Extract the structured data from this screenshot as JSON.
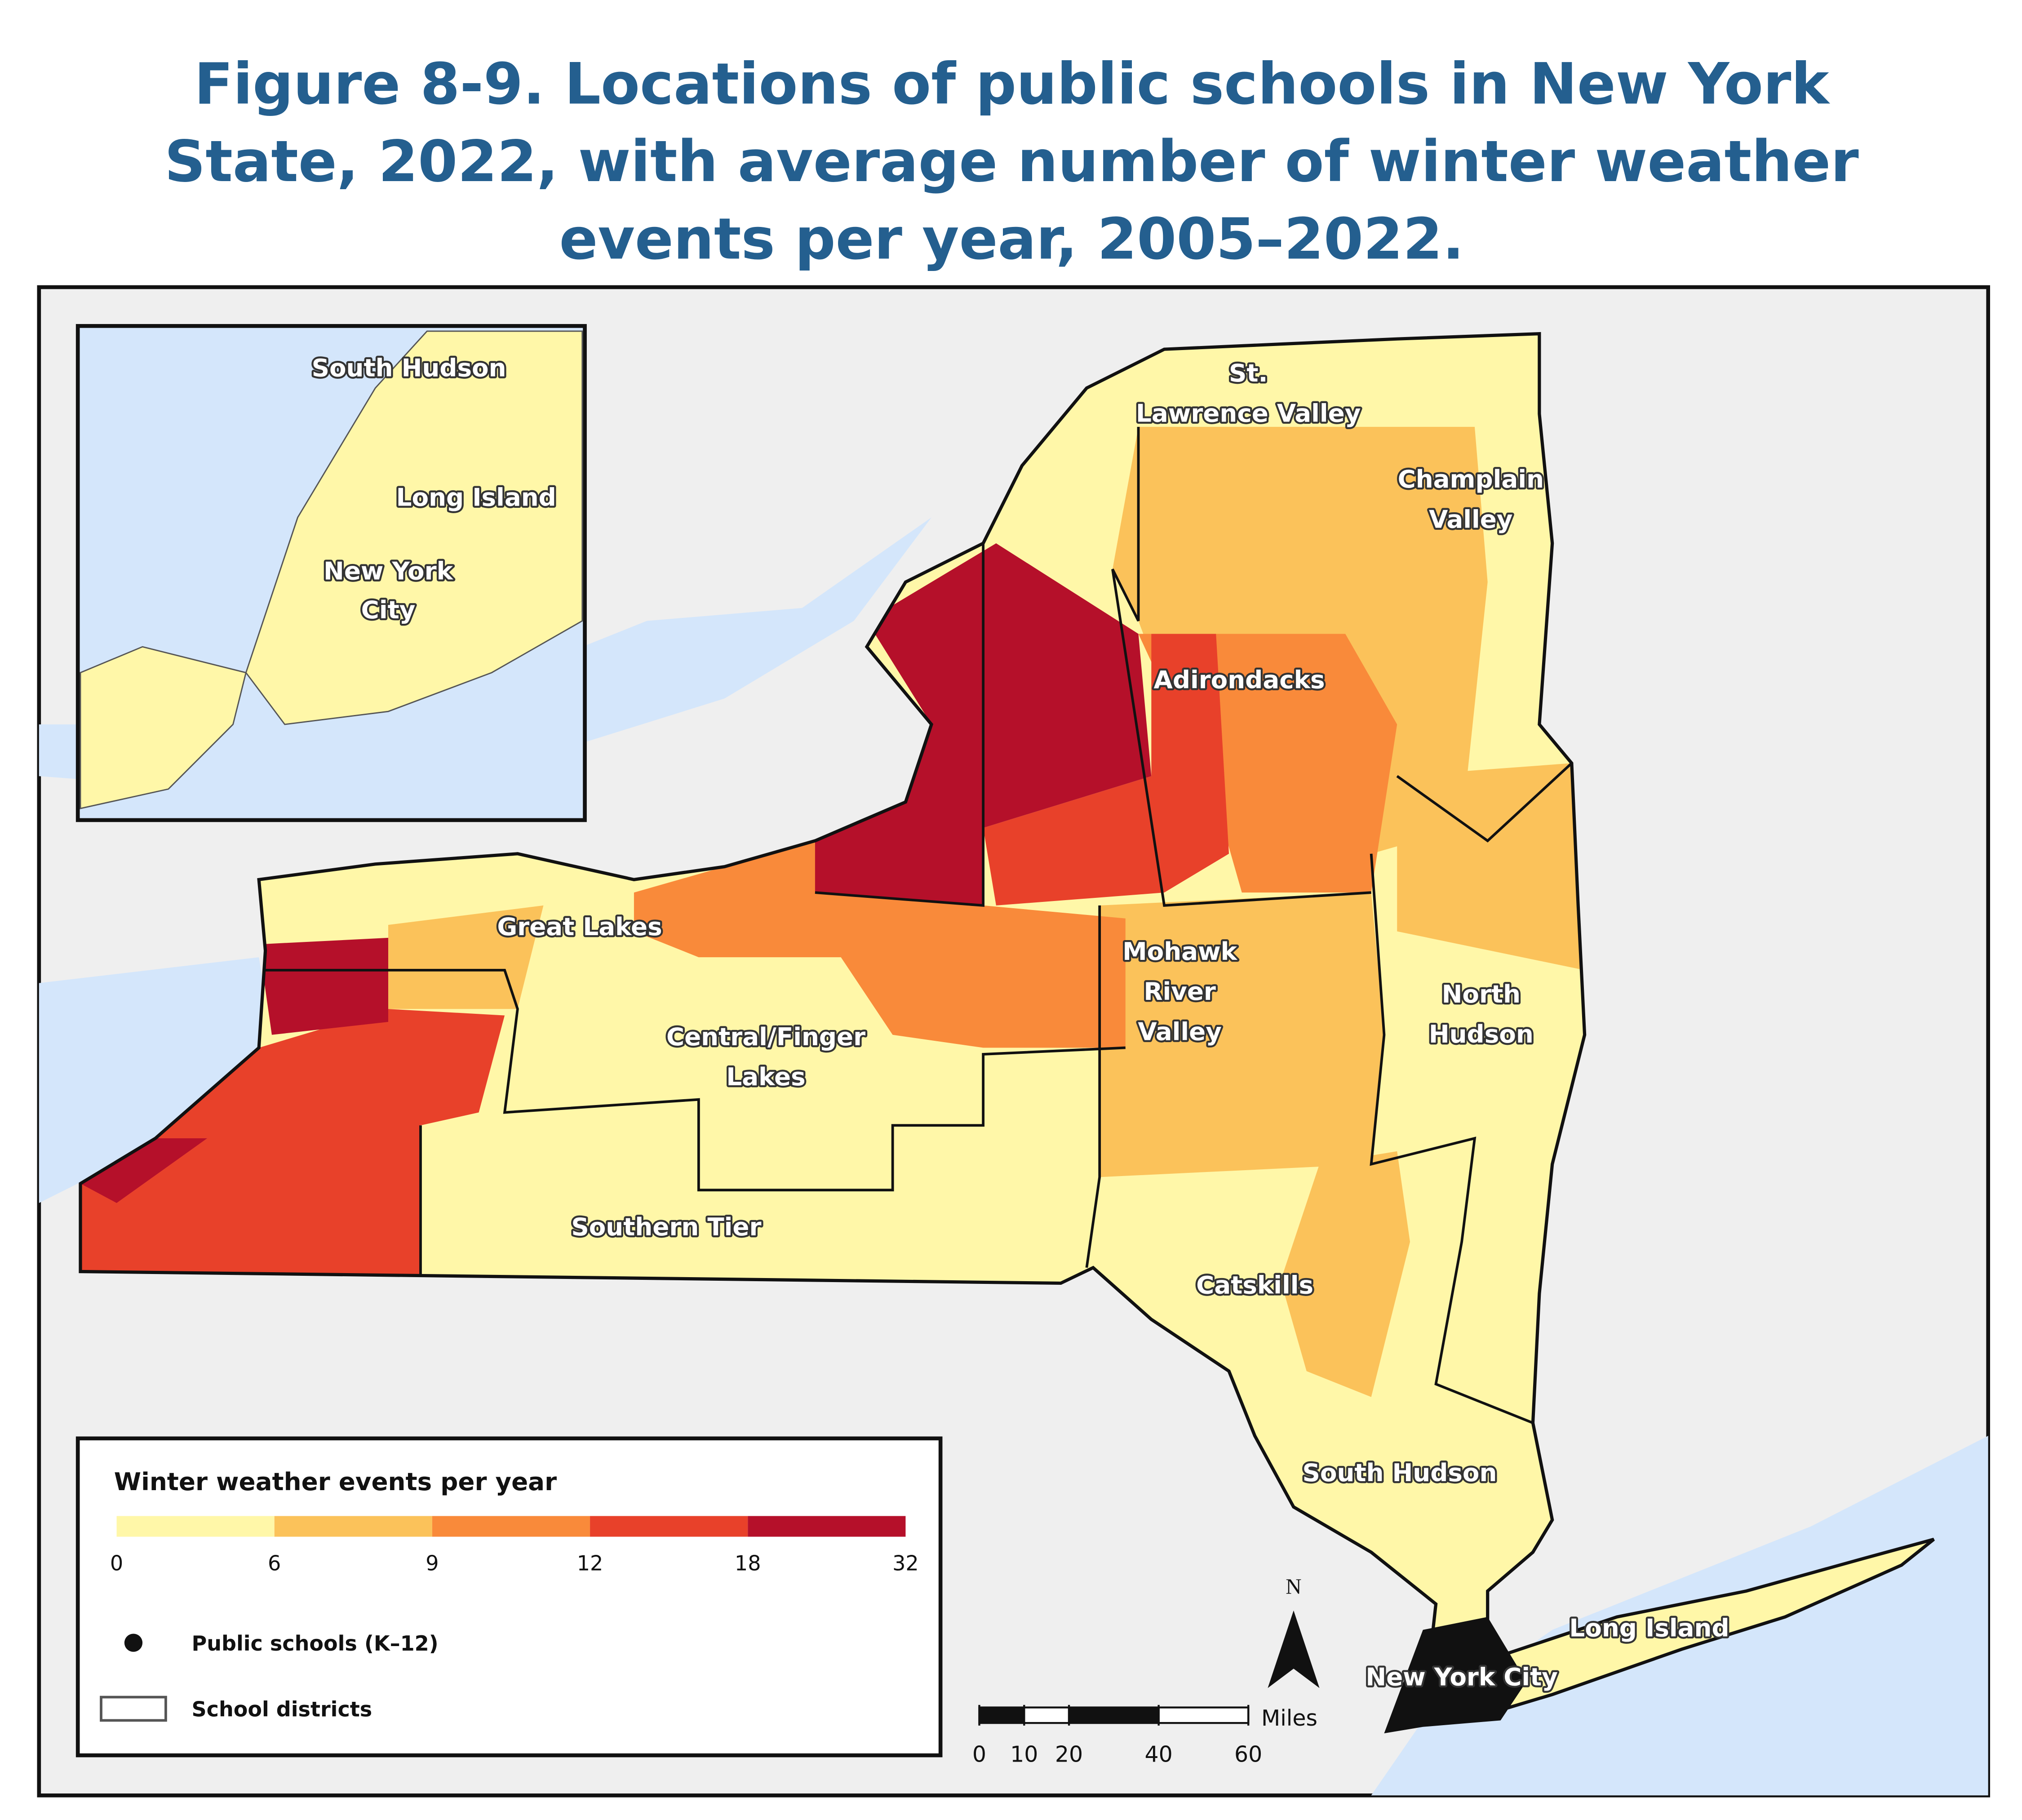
{
  "title": [
    "Figure 8-9. Locations of public schools in New York",
    "State, 2022, with average number of winter weather",
    "events per year, 2005–2022."
  ],
  "map": {
    "region_labels": [
      [
        "St.",
        "Lawrence Valley"
      ],
      [
        "Champlain",
        "Valley"
      ],
      [
        "Adirondacks"
      ],
      [
        "Great Lakes"
      ],
      [
        "Mohawk",
        "River",
        "Valley"
      ],
      [
        "North",
        "Hudson"
      ],
      [
        "Central/Finger",
        "Lakes"
      ],
      [
        "Southern Tier"
      ],
      [
        "Catskills"
      ],
      [
        "South Hudson"
      ],
      [
        "Long Island"
      ],
      [
        "New York City"
      ]
    ],
    "inset_labels": [
      [
        "South Hudson"
      ],
      [
        "Long Island"
      ],
      [
        "New York",
        "City"
      ]
    ]
  },
  "legend": {
    "title": "Winter weather events per year",
    "breaks": [
      0,
      6,
      9,
      12,
      18,
      32
    ],
    "colors": [
      "#fff7a8",
      "#fbc25a",
      "#f98a3a",
      "#e8412a",
      "#b5102a"
    ],
    "items": [
      "Public schools (K–12)",
      "School districts"
    ]
  },
  "scale_bar": {
    "ticks": [
      0,
      10,
      20,
      40,
      60
    ],
    "unit": "Miles"
  },
  "north": "N"
}
